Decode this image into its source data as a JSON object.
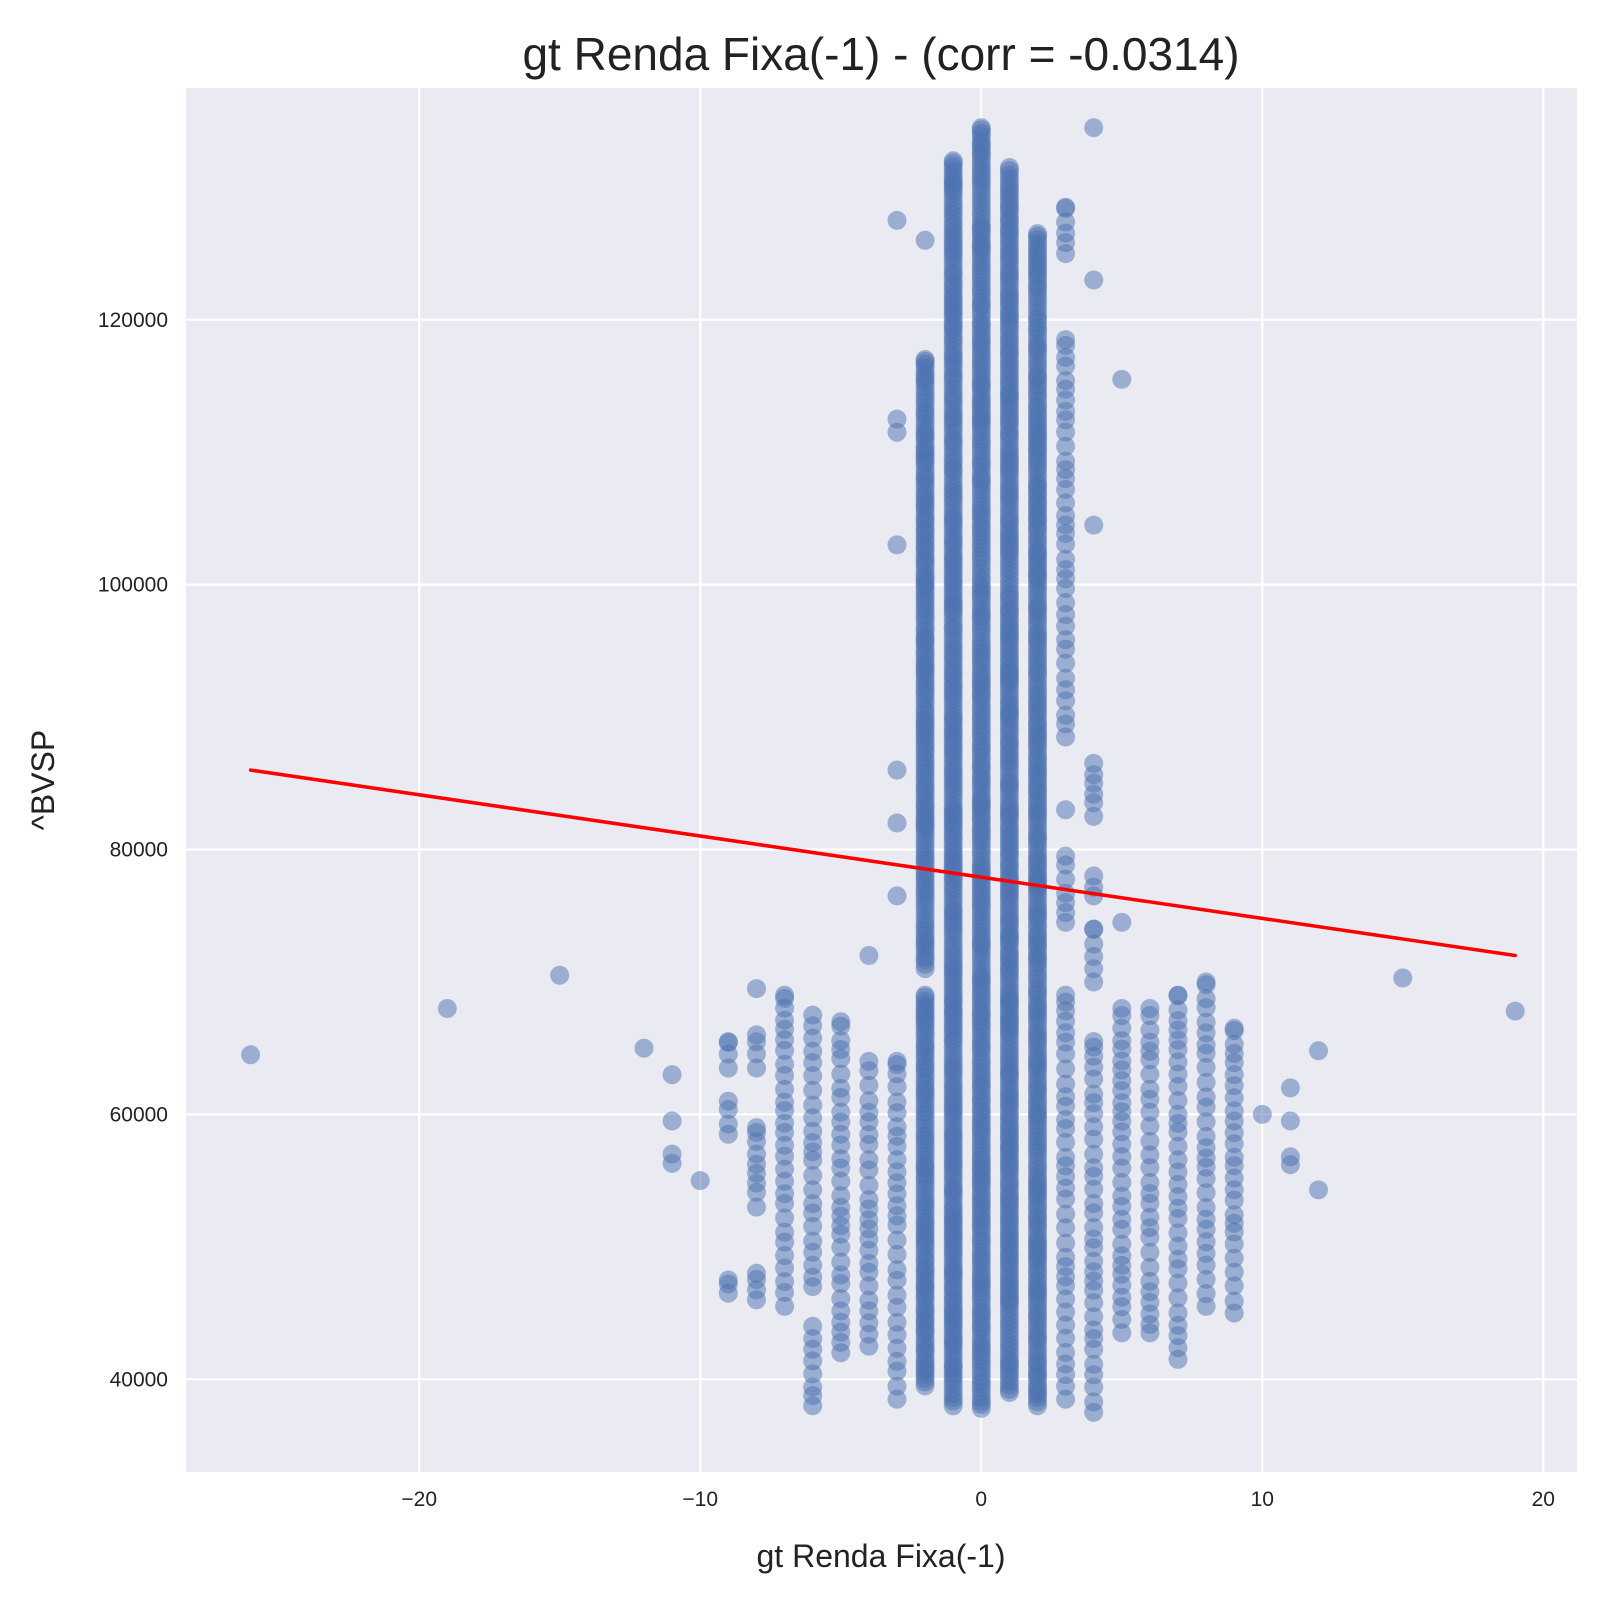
{
  "chart_data": {
    "type": "scatter",
    "title": "gt Renda Fixa(-1) - (corr = -0.0314)",
    "xlabel": "gt Renda Fixa(-1)",
    "ylabel": "^BVSP",
    "xlim": [
      -28.3,
      21.2
    ],
    "ylim": [
      33000,
      137500
    ],
    "xticks": [
      -20,
      -10,
      0,
      10,
      20
    ],
    "xtick_labels": [
      "−20",
      "−10",
      "0",
      "10",
      "20"
    ],
    "yticks": [
      40000,
      60000,
      80000,
      100000,
      120000
    ],
    "ytick_labels": [
      "40000",
      "60000",
      "80000",
      "100000",
      "120000"
    ],
    "grid": true,
    "colors": {
      "background": "#eaeaf2",
      "grid": "#ffffff",
      "points": "#4c72b0",
      "regression": "#ff0000"
    },
    "regression_line": {
      "x": [
        -26,
        19
      ],
      "y": [
        86000,
        72000
      ]
    },
    "columns": [
      {
        "x": 0,
        "segments": [
          [
            37800,
            134500
          ]
        ]
      },
      {
        "x": -1,
        "segments": [
          [
            38000,
            132000
          ]
        ]
      },
      {
        "x": 1,
        "segments": [
          [
            39000,
            131500
          ]
        ]
      },
      {
        "x": 2,
        "segments": [
          [
            38000,
            126500
          ]
        ]
      },
      {
        "x": -2,
        "segments": [
          [
            39500,
            69000
          ],
          [
            71000,
            117000
          ],
          [
            126000,
            126000
          ]
        ]
      },
      {
        "x": 3,
        "segments": [
          [
            38500,
            69000
          ],
          [
            74500,
            79500
          ],
          [
            83000,
            83000
          ],
          [
            88500,
            118500
          ],
          [
            125000,
            128500
          ]
        ]
      },
      {
        "x": -3,
        "segments": [
          [
            38500,
            64000
          ],
          [
            76500,
            76500
          ],
          [
            82000,
            82000
          ],
          [
            86000,
            86000
          ],
          [
            103000,
            103000
          ],
          [
            111500,
            112500
          ],
          [
            127500,
            127500
          ]
        ]
      },
      {
        "x": 4,
        "segments": [
          [
            37500,
            65500
          ],
          [
            70000,
            74000
          ],
          [
            76500,
            78000
          ],
          [
            82500,
            86500
          ],
          [
            104500,
            104500
          ],
          [
            123000,
            123000
          ],
          [
            134500,
            134500
          ]
        ]
      },
      {
        "x": 5,
        "segments": [
          [
            43500,
            68000
          ],
          [
            74500,
            74500
          ],
          [
            115500,
            115500
          ]
        ]
      },
      {
        "x": 6,
        "segments": [
          [
            43500,
            68000
          ]
        ]
      },
      {
        "x": 7,
        "segments": [
          [
            41500,
            69000
          ]
        ]
      },
      {
        "x": 8,
        "segments": [
          [
            45500,
            70000
          ]
        ]
      },
      {
        "x": 9,
        "segments": [
          [
            45000,
            66500
          ]
        ]
      },
      {
        "x": -4,
        "segments": [
          [
            42500,
            64000
          ],
          [
            72000,
            72000
          ]
        ]
      },
      {
        "x": -5,
        "segments": [
          [
            42000,
            67000
          ]
        ]
      },
      {
        "x": -6,
        "segments": [
          [
            38000,
            44000
          ],
          [
            47000,
            67500
          ]
        ]
      },
      {
        "x": -7,
        "segments": [
          [
            45500,
            69000
          ]
        ]
      },
      {
        "x": -8,
        "segments": [
          [
            46000,
            48000
          ],
          [
            53000,
            59000
          ],
          [
            63500,
            66000
          ],
          [
            69500,
            69500
          ]
        ]
      },
      {
        "x": -9,
        "segments": [
          [
            46500,
            47500
          ],
          [
            58500,
            61000
          ],
          [
            63500,
            65500
          ]
        ]
      }
    ],
    "points": [
      {
        "x": -26,
        "y": 64500
      },
      {
        "x": -19,
        "y": 68000
      },
      {
        "x": -15,
        "y": 70500
      },
      {
        "x": -12,
        "y": 65000
      },
      {
        "x": -11,
        "y": 63000
      },
      {
        "x": -11,
        "y": 59500
      },
      {
        "x": -11,
        "y": 57000
      },
      {
        "x": -11,
        "y": 56300
      },
      {
        "x": -10,
        "y": 55000
      },
      {
        "x": 10,
        "y": 60000
      },
      {
        "x": 11,
        "y": 62000
      },
      {
        "x": 11,
        "y": 59500
      },
      {
        "x": 11,
        "y": 56800
      },
      {
        "x": 11,
        "y": 56200
      },
      {
        "x": 12,
        "y": 64800
      },
      {
        "x": 12,
        "y": 54300
      },
      {
        "x": 15,
        "y": 70300
      },
      {
        "x": 19,
        "y": 67800
      }
    ]
  }
}
